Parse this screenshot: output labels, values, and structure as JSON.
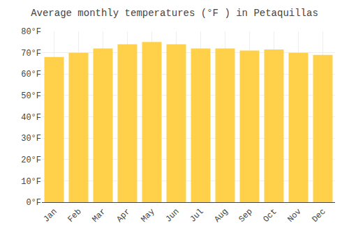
{
  "chart_data": {
    "type": "bar",
    "title": "Average monthly temperatures (°F ) in Petaquillas",
    "categories": [
      "Jan",
      "Feb",
      "Mar",
      "Apr",
      "May",
      "Jun",
      "Jul",
      "Aug",
      "Sep",
      "Oct",
      "Nov",
      "Dec"
    ],
    "values": [
      68,
      70,
      72,
      74,
      75,
      74,
      72,
      72,
      71,
      71.5,
      70,
      69
    ],
    "color": "#FFD04A",
    "ylim": [
      0,
      80
    ],
    "yticks": [
      {
        "value": 0,
        "label": "0°F"
      },
      {
        "value": 10,
        "label": "10°F"
      },
      {
        "value": 20,
        "label": "20°F"
      },
      {
        "value": 30,
        "label": "30°F"
      },
      {
        "value": 40,
        "label": "40°F"
      },
      {
        "value": 50,
        "label": "50°F"
      },
      {
        "value": 60,
        "label": "60°F"
      },
      {
        "value": 70,
        "label": "70°F"
      },
      {
        "value": 80,
        "label": "80°F"
      }
    ],
    "grid": true
  }
}
